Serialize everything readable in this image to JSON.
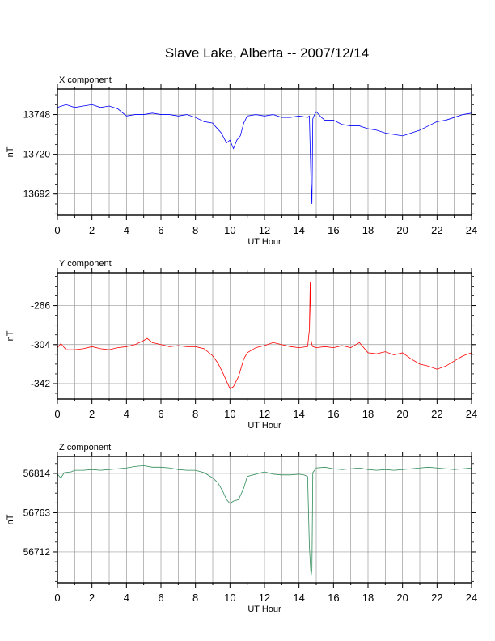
{
  "page": {
    "title": "Slave Lake, Alberta -- 2007/12/14"
  },
  "chart_data": [
    {
      "type": "line",
      "title": "X component",
      "xlabel": "UT Hour",
      "ylabel": "nT",
      "xlim": [
        0,
        24
      ],
      "ylim": [
        13677,
        13766
      ],
      "grid": true,
      "x_ticks": [
        "0",
        "2",
        "4",
        "6",
        "8",
        "10",
        "12",
        "14",
        "16",
        "18",
        "20",
        "22",
        "24"
      ],
      "y_ticks": [
        13748,
        13720,
        13692
      ],
      "series": [
        {
          "color": "#0000ff",
          "x": [
            0,
            0.5,
            1,
            1.5,
            2,
            2.5,
            3,
            3.5,
            4,
            4.5,
            5,
            5.5,
            6,
            6.5,
            7,
            7.5,
            8,
            8.5,
            9,
            9.2,
            9.5,
            9.8,
            10,
            10.2,
            10.4,
            10.6,
            10.8,
            11,
            11.5,
            12,
            12.5,
            13,
            13.5,
            14,
            14.5,
            14.6,
            14.7,
            14.75,
            14.8,
            14.9,
            15,
            15.3,
            15.5,
            16,
            16.5,
            17,
            17.5,
            18,
            18.5,
            19,
            19.5,
            20,
            20.5,
            21,
            21.5,
            22,
            22.5,
            23,
            23.5,
            24
          ],
          "y": [
            13753,
            13755,
            13753,
            13754,
            13755,
            13753,
            13754,
            13752,
            13747,
            13748,
            13748,
            13749,
            13748,
            13748,
            13747,
            13748,
            13746,
            13743,
            13742,
            13739,
            13735,
            13728,
            13730,
            13724,
            13730,
            13733,
            13742,
            13747,
            13748,
            13747,
            13748,
            13746,
            13746,
            13747,
            13746,
            13747,
            13700,
            13685,
            13745,
            13748,
            13750,
            13746,
            13744,
            13744,
            13741,
            13740,
            13740,
            13738,
            13737,
            13735,
            13734,
            13733,
            13735,
            13737,
            13740,
            13743,
            13744,
            13746,
            13748,
            13749
          ]
        }
      ]
    },
    {
      "type": "line",
      "title": "Y component",
      "xlabel": "UT Hour",
      "ylabel": "nT",
      "xlim": [
        0,
        24
      ],
      "ylim": [
        -357,
        -234
      ],
      "grid": true,
      "x_ticks": [
        "0",
        "2",
        "4",
        "6",
        "8",
        "10",
        "12",
        "14",
        "16",
        "18",
        "20",
        "22",
        "24"
      ],
      "y_ticks": [
        -266,
        -304,
        -342
      ],
      "series": [
        {
          "color": "#ff0000",
          "x": [
            0,
            0.2,
            0.5,
            1,
            1.5,
            2,
            2.5,
            3,
            3.5,
            4,
            4.5,
            5,
            5.2,
            5.5,
            6,
            6.5,
            7,
            7.5,
            8,
            8.5,
            9,
            9.3,
            9.6,
            10,
            10.2,
            10.5,
            10.8,
            11,
            11.5,
            12,
            12.5,
            13,
            13.5,
            14,
            14.5,
            14.6,
            14.65,
            14.7,
            14.75,
            14.8,
            15,
            15.5,
            16,
            16.5,
            17,
            17.5,
            18,
            18.5,
            19,
            19.5,
            20,
            20.5,
            21,
            21.5,
            22,
            22.5,
            23,
            23.5,
            24
          ],
          "y": [
            -307,
            -303,
            -309,
            -309,
            -308,
            -306,
            -308,
            -309,
            -307,
            -306,
            -304,
            -300,
            -298,
            -302,
            -304,
            -306,
            -305,
            -306,
            -306,
            -308,
            -315,
            -322,
            -332,
            -347,
            -345,
            -335,
            -318,
            -312,
            -307,
            -305,
            -302,
            -304,
            -306,
            -307,
            -306,
            -290,
            -243,
            -300,
            -304,
            -306,
            -307,
            -306,
            -307,
            -305,
            -307,
            -302,
            -312,
            -313,
            -311,
            -314,
            -312,
            -318,
            -323,
            -325,
            -328,
            -325,
            -320,
            -315,
            -312
          ]
        }
      ]
    },
    {
      "type": "line",
      "title": "Z component",
      "xlabel": "UT Hour",
      "ylabel": "nT",
      "xlim": [
        0,
        24
      ],
      "ylim": [
        56672,
        56836
      ],
      "grid": true,
      "x_ticks": [
        "0",
        "2",
        "4",
        "6",
        "8",
        "10",
        "12",
        "14",
        "16",
        "18",
        "20",
        "22",
        "24"
      ],
      "y_ticks": [
        56814,
        56763,
        56712
      ],
      "series": [
        {
          "color": "#2e8b57",
          "x": [
            0,
            0.2,
            0.4,
            0.8,
            1,
            1.5,
            2,
            2.5,
            3,
            3.5,
            4,
            4.5,
            5,
            5.5,
            6,
            6.5,
            7,
            7.5,
            8,
            8.5,
            9,
            9.3,
            9.6,
            9.8,
            10,
            10.2,
            10.5,
            10.8,
            11,
            11.5,
            12,
            12.5,
            13,
            13.5,
            14,
            14.3,
            14.5,
            14.6,
            14.65,
            14.7,
            14.75,
            14.8,
            15,
            15.5,
            16,
            16.5,
            17,
            17.5,
            18,
            18.5,
            19,
            19.5,
            20,
            20.5,
            21,
            21.5,
            22,
            22.5,
            23,
            23.5,
            24
          ],
          "y": [
            56813,
            56808,
            56815,
            56816,
            56818,
            56818,
            56819,
            56818,
            56819,
            56820,
            56821,
            56823,
            56824,
            56822,
            56822,
            56821,
            56819,
            56818,
            56818,
            56815,
            56808,
            56802,
            56790,
            56780,
            56775,
            56778,
            56780,
            56795,
            56810,
            56813,
            56816,
            56813,
            56812,
            56812,
            56813,
            56812,
            56810,
            56720,
            56700,
            56680,
            56690,
            56815,
            56821,
            56822,
            56820,
            56819,
            56820,
            56821,
            56819,
            56818,
            56819,
            56818,
            56819,
            56820,
            56821,
            56822,
            56821,
            56820,
            56819,
            56820,
            56821
          ]
        }
      ]
    }
  ]
}
